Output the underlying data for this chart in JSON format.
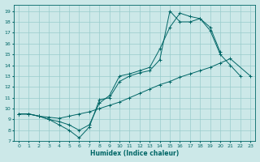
{
  "xlabel": "Humidex (Indice chaleur)",
  "bg_color": "#cce8e8",
  "line_color": "#006666",
  "grid_color": "#99cccc",
  "xlim": [
    -0.5,
    23.5
  ],
  "ylim": [
    7,
    19.6
  ],
  "yticks": [
    7,
    8,
    9,
    10,
    11,
    12,
    13,
    14,
    15,
    16,
    17,
    18,
    19
  ],
  "xticks": [
    0,
    1,
    2,
    3,
    4,
    5,
    6,
    7,
    8,
    9,
    10,
    11,
    12,
    13,
    14,
    15,
    16,
    17,
    18,
    19,
    20,
    21,
    22,
    23
  ],
  "curves": [
    {
      "x": [
        0,
        1,
        2,
        3,
        4,
        5,
        6,
        7,
        8,
        9,
        10,
        11,
        12,
        13,
        14,
        15,
        16,
        17,
        18,
        19,
        20,
        21,
        22,
        23
      ],
      "y": [
        9.5,
        9.5,
        9.3,
        9.2,
        9.1,
        9.3,
        9.5,
        9.7,
        10.0,
        10.3,
        10.6,
        11.0,
        11.4,
        11.8,
        12.2,
        12.5,
        12.9,
        13.2,
        13.5,
        13.8,
        14.2,
        14.6,
        null,
        13.0
      ]
    },
    {
      "x": [
        0,
        1,
        2,
        3,
        4,
        5,
        6,
        7,
        8,
        9,
        10,
        11,
        12,
        13,
        14,
        15,
        16,
        17,
        18,
        19,
        20,
        21,
        22
      ],
      "y": [
        9.5,
        9.5,
        9.3,
        9.0,
        8.5,
        8.0,
        7.3,
        8.3,
        10.8,
        11.0,
        12.5,
        13.0,
        13.3,
        13.5,
        14.5,
        19.0,
        18.0,
        18.0,
        18.3,
        17.2,
        15.0,
        14.0,
        13.0
      ]
    },
    {
      "x": [
        0,
        1,
        2,
        3,
        4,
        5,
        6,
        7,
        8,
        9,
        10,
        11,
        12,
        13,
        14,
        15,
        16,
        17,
        18,
        19,
        20
      ],
      "y": [
        9.5,
        9.5,
        9.3,
        9.0,
        8.8,
        8.5,
        8.0,
        8.5,
        10.5,
        11.2,
        13.0,
        13.2,
        13.5,
        13.8,
        15.5,
        17.5,
        18.8,
        18.5,
        18.3,
        17.5,
        15.2
      ]
    }
  ]
}
